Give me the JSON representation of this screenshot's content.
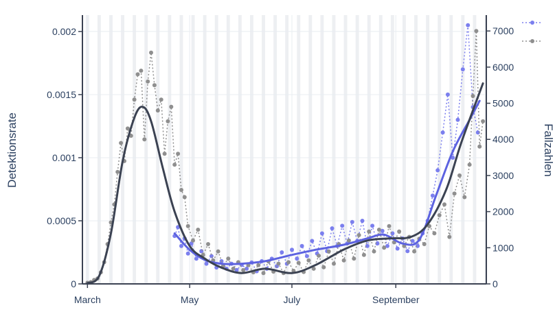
{
  "chart_data": {
    "type": "line",
    "title": "",
    "xlabel": "",
    "ylabel": "Detektionsrate",
    "y2label": "Fallzahlen",
    "x_range": [
      "2020-02-27",
      "2020-10-25"
    ],
    "x_ticks": [
      {
        "date": "2020-03-01",
        "label": "March"
      },
      {
        "date": "2020-05-01",
        "label": "May"
      },
      {
        "date": "2020-07-01",
        "label": "July"
      },
      {
        "date": "2020-09-01",
        "label": "September"
      }
    ],
    "ylim": [
      0,
      0.00213
    ],
    "y_ticks": [
      {
        "value": 0,
        "label": "0"
      },
      {
        "value": 0.0005,
        "label": "0.0005"
      },
      {
        "value": 0.001,
        "label": "0.001"
      },
      {
        "value": 0.0015,
        "label": "0.0015"
      },
      {
        "value": 0.002,
        "label": "0.002"
      }
    ],
    "y2lim": [
      0,
      7440
    ],
    "y2_ticks": [
      {
        "value": 0,
        "label": "0"
      },
      {
        "value": 1000,
        "label": "1000"
      },
      {
        "value": 2000,
        "label": "2000"
      },
      {
        "value": 3000,
        "label": "3000"
      },
      {
        "value": 4000,
        "label": "4000"
      },
      {
        "value": 5000,
        "label": "5000"
      },
      {
        "value": 6000,
        "label": "6000"
      },
      {
        "value": 7000,
        "label": "7000"
      }
    ],
    "grid": true,
    "legend": "top-right",
    "colors": {
      "detection": "#7b7fee",
      "detection_trend": "#5c62e0",
      "cases": "#8f8f8f",
      "cases_trend": "#3b4252",
      "axis": "#3b4252",
      "grid": "#e8ecf1",
      "weekend_band": "#edeff2"
    },
    "series": [
      {
        "axis": "y",
        "style": "dotted-markers",
        "color": "#7b7fee",
        "x": [
          "2020-04-22",
          "2020-04-24",
          "2020-04-26",
          "2020-04-28",
          "2020-04-30",
          "2020-05-02",
          "2020-05-05",
          "2020-05-08",
          "2020-05-11",
          "2020-05-14",
          "2020-05-17",
          "2020-05-20",
          "2020-05-23",
          "2020-05-26",
          "2020-05-29",
          "2020-06-01",
          "2020-06-04",
          "2020-06-07",
          "2020-06-10",
          "2020-06-13",
          "2020-06-16",
          "2020-06-19",
          "2020-06-22",
          "2020-06-25",
          "2020-06-28",
          "2020-07-01",
          "2020-07-04",
          "2020-07-07",
          "2020-07-10",
          "2020-07-13",
          "2020-07-16",
          "2020-07-19",
          "2020-07-22",
          "2020-07-25",
          "2020-07-28",
          "2020-07-31",
          "2020-08-03",
          "2020-08-06",
          "2020-08-09",
          "2020-08-12",
          "2020-08-15",
          "2020-08-18",
          "2020-08-21",
          "2020-08-24",
          "2020-08-27",
          "2020-08-30",
          "2020-09-02",
          "2020-09-05",
          "2020-09-08",
          "2020-09-11",
          "2020-09-14",
          "2020-09-17",
          "2020-09-20",
          "2020-09-23",
          "2020-09-26",
          "2020-09-29",
          "2020-10-02",
          "2020-10-05",
          "2020-10-08",
          "2020-10-11",
          "2020-10-14",
          "2020-10-17",
          "2020-10-20"
        ],
        "values": [
          0.00038,
          0.00045,
          0.0003,
          0.00036,
          0.00024,
          0.00032,
          0.0002,
          0.00026,
          0.00016,
          0.00022,
          0.00013,
          0.00018,
          0.00012,
          0.00016,
          0.00011,
          0.00015,
          0.00012,
          0.00017,
          0.0001,
          0.00018,
          0.00012,
          0.0002,
          0.00014,
          0.00025,
          0.00016,
          0.00027,
          0.0002,
          0.0003,
          0.00022,
          0.00034,
          0.00024,
          0.0004,
          0.00026,
          0.00044,
          0.0003,
          0.00046,
          0.00032,
          0.00049,
          0.00034,
          0.0005,
          0.0003,
          0.00046,
          0.00032,
          0.00042,
          0.0003,
          0.0004,
          0.00028,
          0.00036,
          0.00026,
          0.00034,
          0.0003,
          0.0004,
          0.0005,
          0.0007,
          0.0009,
          0.0012,
          0.0015,
          0.001,
          0.0013,
          0.0017,
          0.00205,
          0.0014,
          0.0012
        ]
      },
      {
        "axis": "y2",
        "style": "dotted-markers",
        "color": "#8f8f8f",
        "x": [
          "2020-03-01",
          "2020-03-03",
          "2020-03-05",
          "2020-03-07",
          "2020-03-09",
          "2020-03-11",
          "2020-03-13",
          "2020-03-15",
          "2020-03-17",
          "2020-03-19",
          "2020-03-21",
          "2020-03-23",
          "2020-03-25",
          "2020-03-27",
          "2020-03-29",
          "2020-03-31",
          "2020-04-02",
          "2020-04-04",
          "2020-04-06",
          "2020-04-08",
          "2020-04-10",
          "2020-04-12",
          "2020-04-14",
          "2020-04-16",
          "2020-04-18",
          "2020-04-20",
          "2020-04-22",
          "2020-04-24",
          "2020-04-26",
          "2020-04-28",
          "2020-04-30",
          "2020-05-03",
          "2020-05-06",
          "2020-05-09",
          "2020-05-12",
          "2020-05-15",
          "2020-05-18",
          "2020-05-21",
          "2020-05-24",
          "2020-05-27",
          "2020-05-30",
          "2020-06-02",
          "2020-06-05",
          "2020-06-08",
          "2020-06-11",
          "2020-06-14",
          "2020-06-17",
          "2020-06-20",
          "2020-06-23",
          "2020-06-26",
          "2020-06-29",
          "2020-07-02",
          "2020-07-05",
          "2020-07-08",
          "2020-07-11",
          "2020-07-14",
          "2020-07-17",
          "2020-07-20",
          "2020-07-23",
          "2020-07-26",
          "2020-07-29",
          "2020-08-01",
          "2020-08-04",
          "2020-08-07",
          "2020-08-10",
          "2020-08-13",
          "2020-08-16",
          "2020-08-19",
          "2020-08-22",
          "2020-08-25",
          "2020-08-28",
          "2020-08-31",
          "2020-09-03",
          "2020-09-06",
          "2020-09-09",
          "2020-09-12",
          "2020-09-15",
          "2020-09-18",
          "2020-09-21",
          "2020-09-24",
          "2020-09-27",
          "2020-09-30",
          "2020-10-03",
          "2020-10-06",
          "2020-10-09",
          "2020-10-12",
          "2020-10-15",
          "2020-10-17",
          "2020-10-19",
          "2020-10-21",
          "2020-10-23"
        ],
        "values": [
          30,
          50,
          110,
          150,
          320,
          600,
          1100,
          1700,
          2200,
          3100,
          3900,
          3400,
          4300,
          4100,
          5100,
          5800,
          5900,
          4000,
          5600,
          6400,
          5500,
          4800,
          5100,
          3600,
          4500,
          4900,
          3300,
          3600,
          2600,
          2400,
          1600,
          1200,
          1500,
          800,
          1100,
          650,
          900,
          500,
          700,
          420,
          600,
          380,
          520,
          320,
          520,
          300,
          620,
          340,
          560,
          300,
          600,
          360,
          580,
          330,
          650,
          420,
          780,
          460,
          900,
          560,
          1100,
          650,
          1200,
          700,
          1350,
          800,
          1450,
          900,
          1500,
          1000,
          1600,
          1150,
          1450,
          1050,
          1300,
          900,
          1250,
          1100,
          1600,
          1400,
          1900,
          2200,
          1300,
          2500,
          3000,
          2400,
          3300,
          5200,
          7000,
          3800,
          4500
        ]
      },
      {
        "axis": "y",
        "style": "smooth-line",
        "color": "#5c62e0",
        "x": [
          "2020-04-22",
          "2020-05-01",
          "2020-05-10",
          "2020-05-20",
          "2020-06-01",
          "2020-06-15",
          "2020-07-01",
          "2020-07-15",
          "2020-08-01",
          "2020-08-15",
          "2020-08-25",
          "2020-09-05",
          "2020-09-15",
          "2020-09-25",
          "2020-10-05",
          "2020-10-15",
          "2020-10-21"
        ],
        "values": [
          0.0004,
          0.00027,
          0.00019,
          0.00016,
          0.00016,
          0.00018,
          0.00023,
          0.00027,
          0.00031,
          0.00036,
          0.00039,
          0.00032,
          0.00035,
          0.0007,
          0.00105,
          0.0013,
          0.00145
        ]
      },
      {
        "axis": "y2",
        "style": "smooth-line",
        "color": "#3b4252",
        "x": [
          "2020-03-01",
          "2020-03-08",
          "2020-03-15",
          "2020-03-22",
          "2020-03-29",
          "2020-04-03",
          "2020-04-08",
          "2020-04-15",
          "2020-04-22",
          "2020-05-01",
          "2020-05-10",
          "2020-05-20",
          "2020-06-01",
          "2020-06-15",
          "2020-07-01",
          "2020-07-15",
          "2020-08-01",
          "2020-08-15",
          "2020-08-29",
          "2020-09-10",
          "2020-09-20",
          "2020-10-01",
          "2020-10-10",
          "2020-10-23"
        ],
        "values": [
          20,
          220,
          1400,
          3400,
          4600,
          4900,
          4500,
          3200,
          2000,
          1050,
          700,
          450,
          300,
          420,
          300,
          520,
          950,
          1200,
          1260,
          1300,
          1650,
          2600,
          3900,
          5550
        ]
      }
    ]
  }
}
